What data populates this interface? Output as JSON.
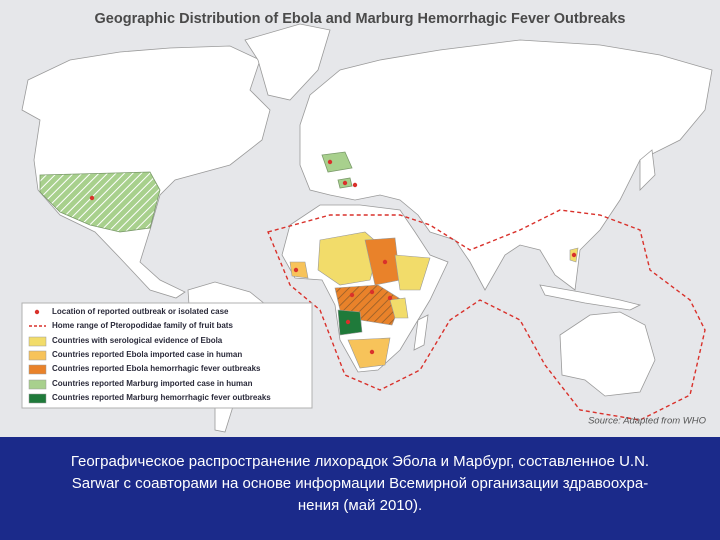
{
  "header": {
    "title": "Geographic Distribution of Ebola and Marburg Hemorrhagic Fever Outbreaks"
  },
  "legend": {
    "items": [
      {
        "label": "Location of reported outbreak or isolated case"
      },
      {
        "label": "Home range of Pteropodidae family of fruit bats"
      },
      {
        "label": "Countries with serological evidence of Ebola"
      },
      {
        "label": "Countries reported Ebola imported case in human"
      },
      {
        "label": "Countries reported Ebola hemorrhagic fever outbreaks"
      },
      {
        "label": "Countries reported Marburg imported case in human"
      },
      {
        "label": "Countries reported Marburg hemorrhagic fever outbreaks"
      }
    ]
  },
  "source": "Source: Adapted from WHO",
  "caption": {
    "lines": [
      "Географическое распространение лихорадок Эбола и Марбург, составленное U.N.",
      "Sarwar с соавторами на основе информации Всемирной организации здравоохра-",
      "нения (май 2010)."
    ]
  }
}
